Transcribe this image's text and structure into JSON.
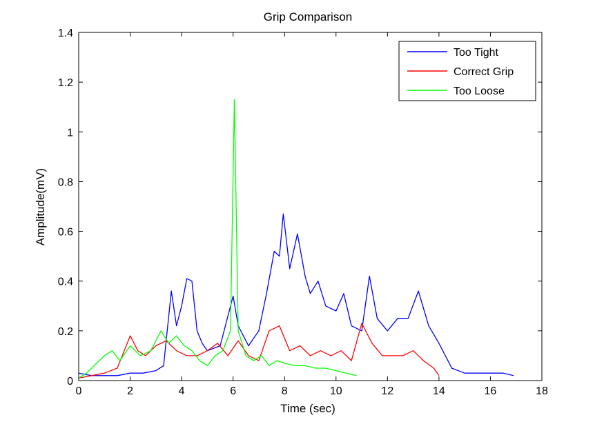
{
  "chart_data": {
    "type": "line",
    "title": "Grip Comparison",
    "xlabel": "Time (sec)",
    "ylabel": "Amplitude(mV)",
    "xlim": [
      0,
      18
    ],
    "ylim": [
      0,
      1.4
    ],
    "x_ticks": [
      "0",
      "2",
      "4",
      "6",
      "8",
      "10",
      "12",
      "14",
      "16",
      "18"
    ],
    "y_ticks": [
      "0",
      "0.2",
      "0.4",
      "0.6",
      "0.8",
      "1",
      "1.2",
      "1.4"
    ],
    "grid": false,
    "legend_position": "top-right",
    "series": [
      {
        "name": "Too Tight",
        "color": "#0000ff",
        "x": [
          0,
          0.5,
          1,
          1.5,
          2,
          2.5,
          3,
          3.3,
          3.6,
          3.8,
          4,
          4.2,
          4.4,
          4.6,
          4.8,
          5,
          5.5,
          6,
          6.2,
          6.6,
          7,
          7.3,
          7.6,
          7.8,
          7.95,
          8.2,
          8.5,
          8.8,
          9,
          9.3,
          9.6,
          10,
          10.3,
          10.6,
          11,
          11.3,
          11.6,
          12,
          12.4,
          12.8,
          13.2,
          13.6,
          14,
          14.5,
          15,
          15.5,
          16,
          16.5,
          16.9
        ],
        "values": [
          0.03,
          0.02,
          0.02,
          0.02,
          0.03,
          0.03,
          0.04,
          0.06,
          0.36,
          0.22,
          0.3,
          0.41,
          0.4,
          0.2,
          0.15,
          0.12,
          0.14,
          0.34,
          0.22,
          0.14,
          0.2,
          0.35,
          0.52,
          0.5,
          0.67,
          0.45,
          0.59,
          0.42,
          0.35,
          0.4,
          0.3,
          0.28,
          0.35,
          0.22,
          0.2,
          0.42,
          0.25,
          0.2,
          0.25,
          0.25,
          0.36,
          0.22,
          0.15,
          0.05,
          0.03,
          0.03,
          0.03,
          0.03,
          0.02
        ]
      },
      {
        "name": "Correct Grip",
        "color": "#ff0000",
        "x": [
          0,
          0.5,
          1,
          1.5,
          2,
          2.3,
          2.6,
          3,
          3.4,
          3.8,
          4.2,
          4.6,
          5,
          5.4,
          5.8,
          6.2,
          6.6,
          7,
          7.4,
          7.8,
          8.2,
          8.6,
          9,
          9.4,
          9.8,
          10.2,
          10.6,
          11,
          11.4,
          11.8,
          12.2,
          12.6,
          13,
          13.4,
          13.8,
          14
        ],
        "values": [
          0.01,
          0.02,
          0.03,
          0.05,
          0.18,
          0.12,
          0.1,
          0.14,
          0.16,
          0.12,
          0.1,
          0.1,
          0.12,
          0.15,
          0.1,
          0.16,
          0.1,
          0.08,
          0.2,
          0.22,
          0.12,
          0.14,
          0.1,
          0.12,
          0.1,
          0.12,
          0.08,
          0.23,
          0.15,
          0.1,
          0.1,
          0.1,
          0.12,
          0.08,
          0.05,
          0.02
        ]
      },
      {
        "name": "Too Loose",
        "color": "#00ff00",
        "x": [
          0,
          0.3,
          0.6,
          1,
          1.3,
          1.6,
          2,
          2.4,
          2.8,
          3.2,
          3.5,
          3.8,
          4.1,
          4.4,
          4.7,
          5,
          5.3,
          5.6,
          5.9,
          6.05,
          6.2,
          6.5,
          6.8,
          7.1,
          7.4,
          7.7,
          8,
          8.4,
          8.8,
          9.2,
          9.6,
          10,
          10.4,
          10.8
        ],
        "values": [
          0.01,
          0.03,
          0.06,
          0.1,
          0.12,
          0.08,
          0.14,
          0.1,
          0.12,
          0.2,
          0.15,
          0.18,
          0.14,
          0.12,
          0.08,
          0.06,
          0.1,
          0.12,
          0.2,
          1.13,
          0.2,
          0.1,
          0.08,
          0.1,
          0.06,
          0.08,
          0.07,
          0.06,
          0.06,
          0.05,
          0.05,
          0.04,
          0.03,
          0.02
        ]
      }
    ]
  }
}
